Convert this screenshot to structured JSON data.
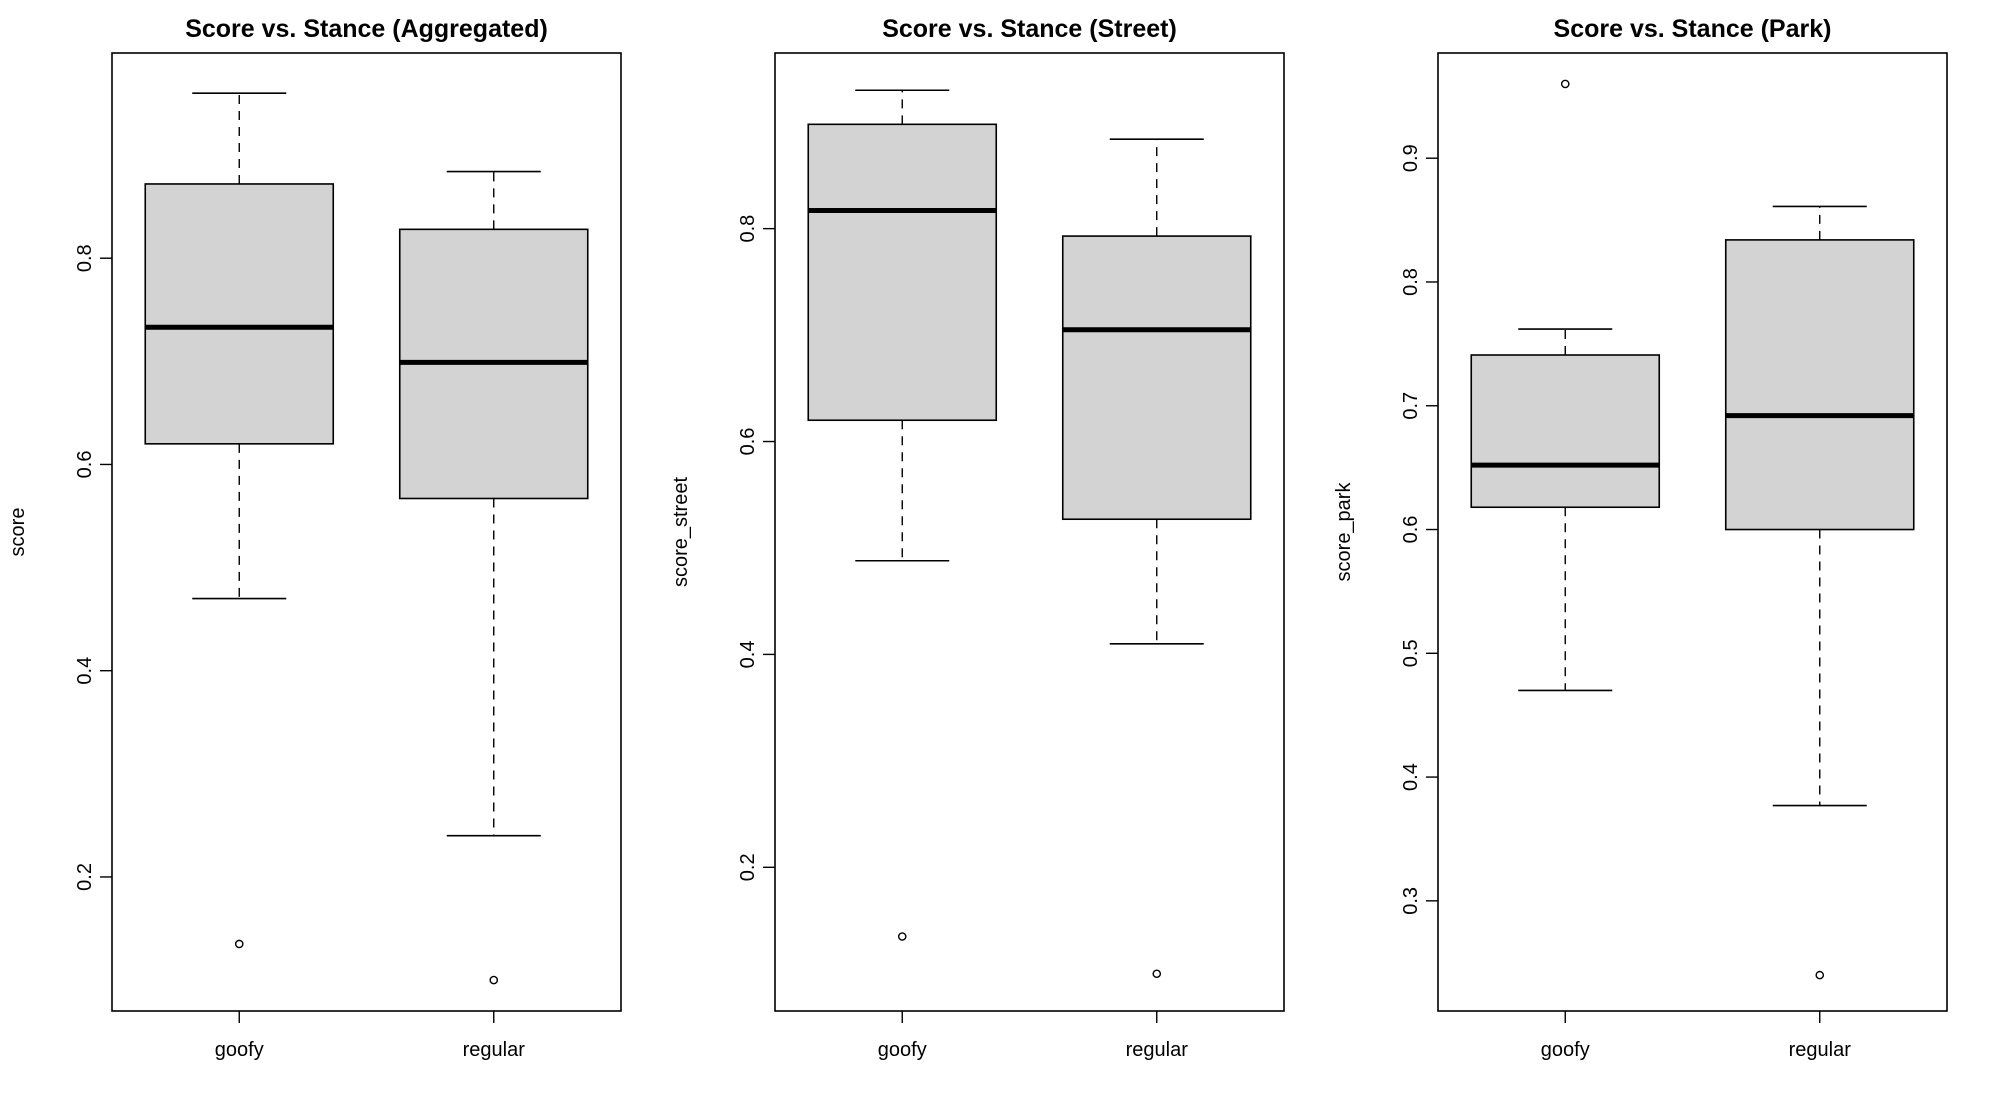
{
  "chart_data": [
    {
      "type": "box",
      "title": "Score vs. Stance (Aggregated)",
      "xlabel": "",
      "ylabel": "score",
      "categories": [
        "goofy",
        "regular"
      ],
      "ylim": [
        0.07,
        0.999
      ],
      "yticks": [
        0.2,
        0.4,
        0.6,
        0.8
      ],
      "ytick_labels": [
        "0.2",
        "0.4",
        "0.6",
        "0.8"
      ],
      "boxes": [
        {
          "category": "goofy",
          "whisker_low": 0.47,
          "q1": 0.62,
          "median": 0.733,
          "q3": 0.872,
          "whisker_high": 0.96,
          "outliers": [
            0.135
          ]
        },
        {
          "category": "regular",
          "whisker_low": 0.24,
          "q1": 0.567,
          "median": 0.699,
          "q3": 0.828,
          "whisker_high": 0.884,
          "outliers": [
            0.1
          ]
        }
      ]
    },
    {
      "type": "box",
      "title": "Score vs. Stance (Street)",
      "xlabel": "",
      "ylabel": "score_street",
      "categories": [
        "goofy",
        "regular"
      ],
      "ylim": [
        0.065,
        0.965
      ],
      "yticks": [
        0.2,
        0.4,
        0.6,
        0.8
      ],
      "ytick_labels": [
        "0.2",
        "0.4",
        "0.6",
        "0.8"
      ],
      "boxes": [
        {
          "category": "goofy",
          "whisker_low": 0.488,
          "q1": 0.62,
          "median": 0.817,
          "q3": 0.898,
          "whisker_high": 0.93,
          "outliers": [
            0.135
          ]
        },
        {
          "category": "regular",
          "whisker_low": 0.41,
          "q1": 0.527,
          "median": 0.705,
          "q3": 0.793,
          "whisker_high": 0.884,
          "outliers": [
            0.1
          ]
        }
      ]
    },
    {
      "type": "box",
      "title": "Score vs. Stance (Park)",
      "xlabel": "",
      "ylabel": "score_park",
      "categories": [
        "goofy",
        "regular"
      ],
      "ylim": [
        0.211,
        0.985
      ],
      "yticks": [
        0.3,
        0.4,
        0.5,
        0.6,
        0.7,
        0.8,
        0.9
      ],
      "ytick_labels": [
        "0.3",
        "0.4",
        "0.5",
        "0.6",
        "0.7",
        "0.8",
        "0.9"
      ],
      "boxes": [
        {
          "category": "goofy",
          "whisker_low": 0.47,
          "q1": 0.618,
          "median": 0.652,
          "q3": 0.741,
          "whisker_high": 0.762,
          "outliers": [
            0.96
          ]
        },
        {
          "category": "regular",
          "whisker_low": 0.377,
          "q1": 0.6,
          "median": 0.692,
          "q3": 0.834,
          "whisker_high": 0.861,
          "outliers": [
            0.24
          ]
        }
      ]
    }
  ]
}
